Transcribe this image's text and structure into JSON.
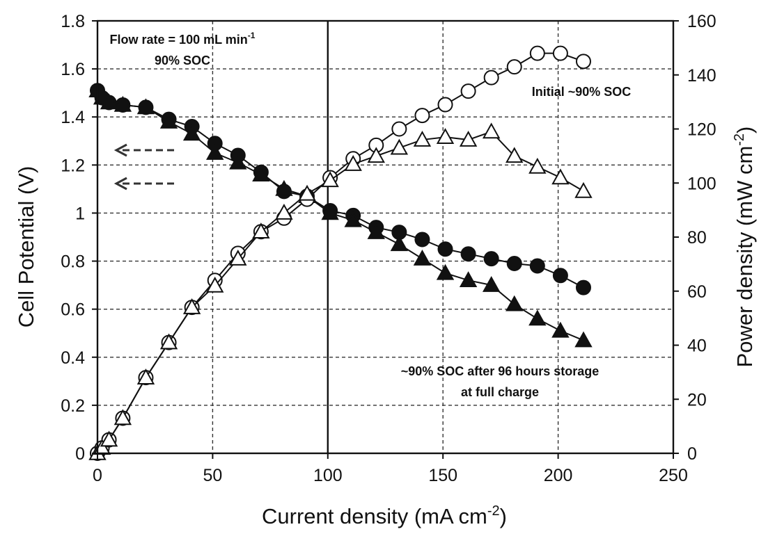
{
  "chart_data": {
    "type": "scatter",
    "title": "",
    "xlabel": "Current density (mA cm",
    "xlabel_sup": "-2",
    "xlabel_tail": ")",
    "ylabel_left": "Cell Potential (V)",
    "ylabel_right": "Power density (mW cm",
    "ylabel_right_sup": "-2",
    "ylabel_right_tail": ")",
    "xlim": [
      0,
      250
    ],
    "ylim_left": [
      0,
      1.8
    ],
    "ylim_right": [
      0,
      160
    ],
    "x_ticks": [
      "0",
      "50",
      "100",
      "150",
      "200",
      "250"
    ],
    "y_left_ticks": [
      "0",
      "0.2",
      "0.4",
      "0.6",
      "0.8",
      "1",
      "1.2",
      "1.4",
      "1.6",
      "1.8"
    ],
    "y_right_ticks": [
      "0",
      "20",
      "40",
      "60",
      "80",
      "100",
      "120",
      "140",
      "160"
    ],
    "grid": true,
    "annotations": {
      "flow_line1": "Flow rate = 100 mL min",
      "flow_sup": "-1",
      "flow_line2": "90% SOC",
      "initial": "Initial ~90%  SOC",
      "storage_line1": "~90%  SOC after 96 hours storage",
      "storage_line2": "at full charge"
    },
    "arrows": [
      "left-arrow",
      "left-arrow"
    ],
    "series": [
      {
        "axis": "left",
        "marker": "filled-circle",
        "x": [
          0,
          2,
          5,
          11,
          21,
          31,
          41,
          51,
          61,
          71,
          81,
          91,
          101,
          111,
          121,
          131,
          141,
          151,
          161,
          171,
          181,
          191,
          201,
          211
        ],
        "y": [
          1.51,
          1.48,
          1.46,
          1.45,
          1.44,
          1.39,
          1.36,
          1.29,
          1.24,
          1.17,
          1.09,
          1.07,
          1.01,
          0.99,
          0.94,
          0.92,
          0.89,
          0.85,
          0.83,
          0.81,
          0.79,
          0.78,
          0.74,
          0.69
        ]
      },
      {
        "axis": "left",
        "marker": "filled-triangle",
        "x": [
          0,
          2,
          5,
          11,
          21,
          31,
          41,
          51,
          61,
          71,
          81,
          91,
          101,
          111,
          121,
          131,
          141,
          151,
          161,
          171,
          181,
          191,
          201,
          211
        ],
        "y": [
          1.51,
          1.48,
          1.46,
          1.45,
          1.44,
          1.38,
          1.33,
          1.25,
          1.21,
          1.16,
          1.1,
          1.07,
          1.0,
          0.97,
          0.92,
          0.87,
          0.81,
          0.75,
          0.72,
          0.7,
          0.62,
          0.56,
          0.51,
          0.47
        ]
      },
      {
        "axis": "right",
        "marker": "open-circle",
        "x": [
          0,
          2,
          5,
          11,
          21,
          31,
          41,
          51,
          61,
          71,
          81,
          91,
          101,
          111,
          121,
          131,
          141,
          151,
          161,
          171,
          181,
          191,
          201,
          211
        ],
        "y": [
          0,
          2,
          5,
          13,
          28,
          41,
          54,
          64,
          74,
          82,
          87,
          94,
          102,
          109,
          114,
          120,
          125,
          129,
          134,
          139,
          143,
          148,
          148,
          145
        ]
      },
      {
        "axis": "right",
        "marker": "open-triangle",
        "x": [
          0,
          2,
          5,
          11,
          21,
          31,
          41,
          51,
          61,
          71,
          81,
          91,
          101,
          111,
          121,
          131,
          141,
          151,
          161,
          171,
          181,
          191,
          201,
          211
        ],
        "y": [
          0,
          2,
          5,
          13,
          28,
          41,
          54,
          62,
          72,
          82,
          89,
          96,
          101,
          107,
          110,
          113,
          116,
          117,
          116,
          119,
          110,
          106,
          102,
          97
        ]
      }
    ]
  }
}
